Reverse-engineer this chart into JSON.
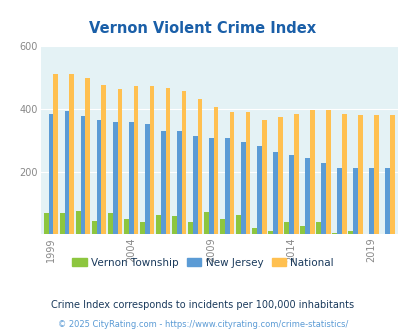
{
  "title": "Vernon Violent Crime Index",
  "title_color": "#1a5fa8",
  "years": [
    1999,
    2000,
    2001,
    2002,
    2003,
    2004,
    2005,
    2006,
    2007,
    2008,
    2009,
    2010,
    2011,
    2012,
    2013,
    2014,
    2015,
    2016,
    2017,
    2018,
    2019,
    2020
  ],
  "vernon": [
    68,
    68,
    75,
    42,
    68,
    50,
    40,
    62,
    58,
    38,
    70,
    50,
    62,
    20,
    10,
    40,
    28,
    38,
    5,
    12,
    2,
    0
  ],
  "nj": [
    385,
    393,
    377,
    363,
    357,
    357,
    352,
    328,
    328,
    315,
    308,
    308,
    293,
    283,
    262,
    252,
    243,
    228,
    210,
    210,
    210,
    210
  ],
  "national": [
    510,
    510,
    500,
    475,
    465,
    473,
    473,
    467,
    458,
    430,
    405,
    390,
    390,
    365,
    375,
    383,
    398,
    398,
    385,
    380,
    380,
    380
  ],
  "bar_color_vernon": "#8dc63f",
  "bar_color_nj": "#5b9bd5",
  "bar_color_national": "#ffc050",
  "bg_color": "#e4f2f5",
  "ylim": [
    0,
    600
  ],
  "yticks": [
    0,
    200,
    400,
    600
  ],
  "xlabel_ticks": [
    1999,
    2004,
    2009,
    2014,
    2019
  ],
  "legend_labels": [
    "Vernon Township",
    "New Jersey",
    "National"
  ],
  "subtitle": "Crime Index corresponds to incidents per 100,000 inhabitants",
  "subtitle_color": "#1a3a5c",
  "footer": "© 2025 CityRating.com - https://www.cityrating.com/crime-statistics/",
  "footer_color": "#5b9bd5",
  "grid_color": "#ffffff",
  "tick_color": "#888888"
}
